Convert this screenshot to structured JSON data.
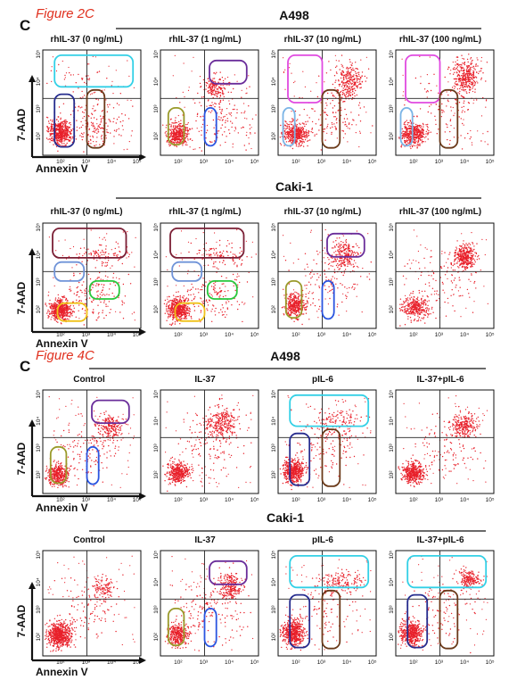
{
  "figure_labels": {
    "top": "Figure 2C",
    "bottom": "Figure 4C",
    "panel_letter": "C"
  },
  "axes": {
    "x_label": "Annexin V",
    "y_label": "7-AAD",
    "x_ticks": [
      "10²",
      "10³",
      "10⁴",
      "10⁵"
    ],
    "y_ticks": [
      "10²",
      "10³",
      "10⁴",
      "10⁵"
    ]
  },
  "colors": {
    "dots": "#e8202a",
    "cyan": "#33d0e6",
    "purple": "#6a2d9a",
    "navy": "#262c8e",
    "brown": "#6b3a1a",
    "olive": "#9a9a2a",
    "blue": "#2a55e0",
    "magenta": "#e04ae0",
    "lightblue": "#7ab4e6",
    "maroon": "#7a1f35",
    "steelblue": "#6f93d8",
    "green": "#28c83c",
    "yellow": "#f0c21a"
  },
  "groups": [
    {
      "cell_line": "A498",
      "conditions": [
        "rhIL-37 (0 ng/mL)",
        "rhIL-37 (1 ng/mL)",
        "rhIL-37 (10 ng/mL)",
        "rhIL-37 (100 ng/mL)"
      ],
      "gates": [
        [
          "cyan",
          "navy",
          "brown"
        ],
        [
          "purple",
          "olive",
          "blue"
        ],
        [
          "magenta",
          "lightblue",
          "brown"
        ],
        [
          "magenta",
          "lightblue",
          "brown"
        ]
      ]
    },
    {
      "cell_line": "Caki-1",
      "conditions": [
        "rhIL-37 (0 ng/mL)",
        "rhIL-37 (1 ng/mL)",
        "rhIL-37 (10 ng/mL)",
        "rhIL-37 (100 ng/mL)"
      ],
      "gates": [
        [
          "maroon",
          "steelblue",
          "green",
          "yellow"
        ],
        [
          "maroon",
          "steelblue",
          "green",
          "yellow"
        ],
        [
          "purple",
          "olive",
          "blue"
        ],
        []
      ]
    },
    {
      "cell_line": "A498",
      "conditions": [
        "Control",
        "IL-37",
        "pIL-6",
        "IL-37+pIL-6"
      ],
      "gates": [
        [
          "purple",
          "olive",
          "blue"
        ],
        [],
        [
          "cyan",
          "navy",
          "brown"
        ],
        []
      ]
    },
    {
      "cell_line": "Caki-1",
      "conditions": [
        "Control",
        "IL-37",
        "pIL-6",
        "IL-37+pIL-6"
      ],
      "gates": [
        [],
        [
          "purple",
          "olive",
          "blue"
        ],
        [
          "cyan",
          "navy",
          "brown"
        ],
        [
          "cyan",
          "navy",
          "brown"
        ]
      ]
    }
  ]
}
